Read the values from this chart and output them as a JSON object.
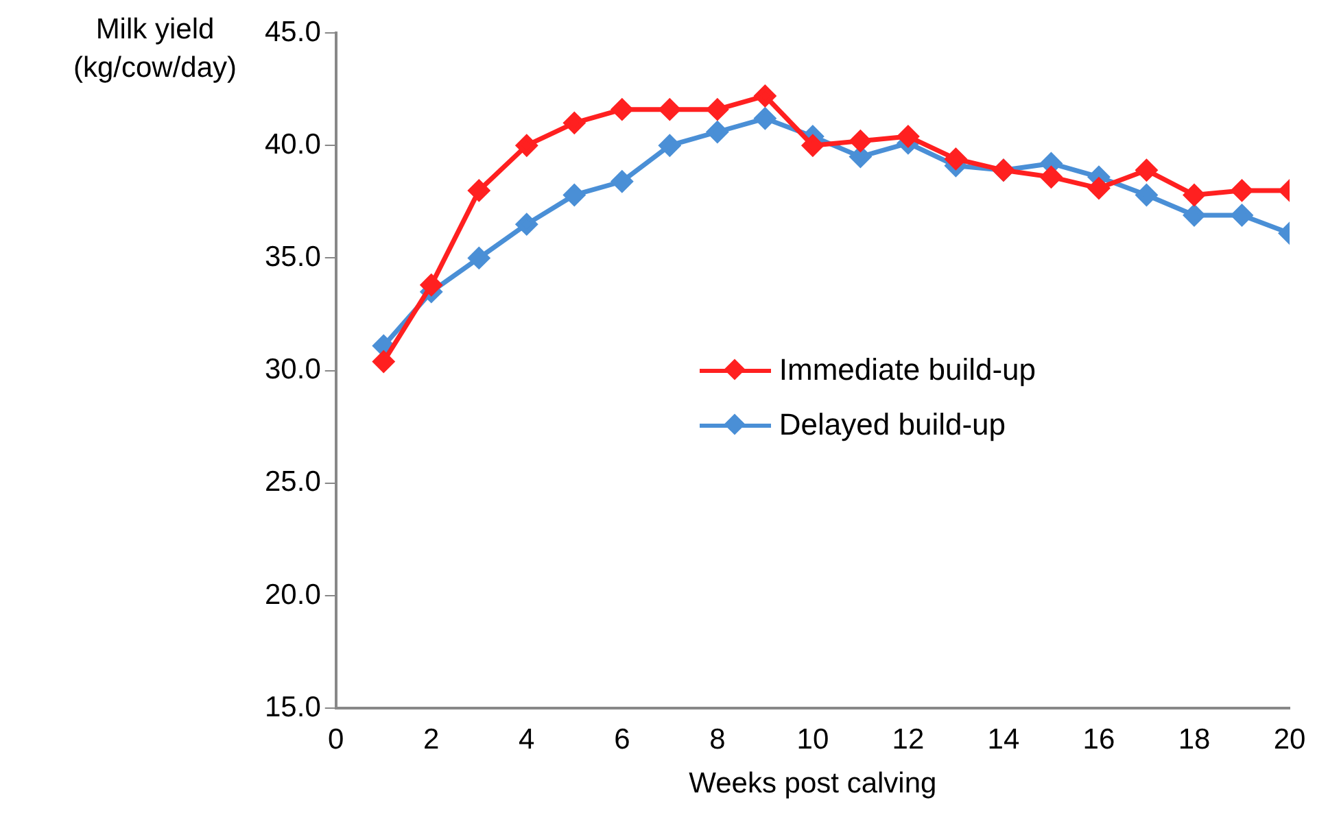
{
  "chart_data": {
    "type": "line",
    "xlabel": "Weeks post calving",
    "ylabel": "Milk yield (kg/cow/day)",
    "x": [
      1,
      2,
      3,
      4,
      5,
      6,
      7,
      8,
      9,
      10,
      11,
      12,
      13,
      14,
      15,
      16,
      17,
      18,
      19,
      20
    ],
    "series": [
      {
        "name": "Immediate build-up",
        "color": "#ff2020",
        "values": [
          30.4,
          33.8,
          38.0,
          40.0,
          41.0,
          41.6,
          41.6,
          41.6,
          42.2,
          40.0,
          40.2,
          40.4,
          39.4,
          38.9,
          38.6,
          38.1,
          38.9,
          37.8,
          38.0,
          38.0
        ]
      },
      {
        "name": "Delayed build-up",
        "color": "#4a8fd6",
        "values": [
          31.1,
          33.5,
          35.0,
          36.5,
          37.8,
          38.4,
          40.0,
          40.6,
          41.2,
          40.4,
          39.5,
          40.1,
          39.1,
          38.9,
          39.2,
          38.6,
          37.8,
          36.9,
          36.9,
          36.1
        ]
      }
    ],
    "xlim": [
      0,
      20
    ],
    "xticks": [
      0,
      2,
      4,
      6,
      8,
      10,
      12,
      14,
      16,
      18,
      20
    ],
    "ylim": [
      15,
      45
    ],
    "yticks": [
      {
        "value": 15,
        "label": "15.0"
      },
      {
        "value": 20,
        "label": "20.0"
      },
      {
        "value": 25,
        "label": "25.0"
      },
      {
        "value": 30,
        "label": "30.0"
      },
      {
        "value": 35,
        "label": "35.0"
      },
      {
        "value": 40,
        "label": "40.0"
      },
      {
        "value": 45,
        "label": "45.0"
      }
    ],
    "grid": false,
    "legend": "center",
    "marker": "diamond",
    "line_style": "solid"
  }
}
